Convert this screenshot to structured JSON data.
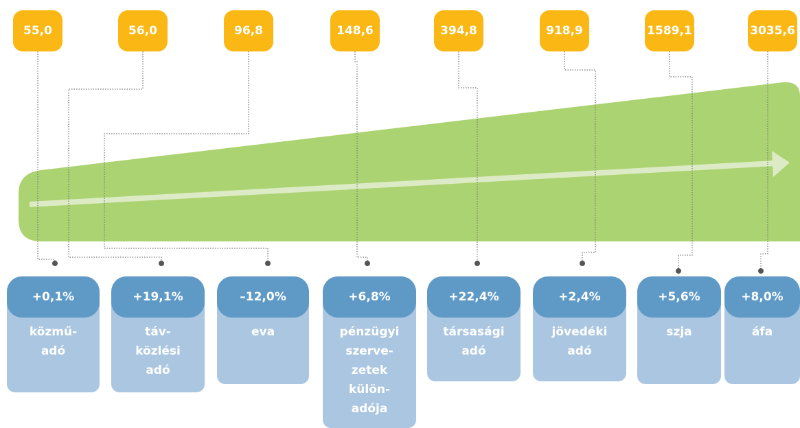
{
  "items": [
    {
      "amount": "55,0",
      "change": "+0,1%",
      "label": [
        "közmű-",
        "adó"
      ]
    },
    {
      "amount": "56,0",
      "change": "+19,1%",
      "label": [
        "táv-",
        "közlési",
        "adó"
      ]
    },
    {
      "amount": "96,8",
      "change": "–12,0%",
      "label": [
        "eva"
      ]
    },
    {
      "amount": "148,6",
      "change": "+6,8%",
      "label": [
        "pénzügyi",
        "szerve-",
        "zetek",
        "külön-",
        "adója"
      ]
    },
    {
      "amount": "394,8",
      "change": "+22,4%",
      "label": [
        "társasági",
        "adó"
      ]
    },
    {
      "amount": "918,9",
      "change": "+2,4%",
      "label": [
        "jövedéki",
        "adó"
      ]
    },
    {
      "amount": "1589,1",
      "change": "+5,6%",
      "label": [
        "szja"
      ]
    },
    {
      "amount": "3035,6",
      "change": "+8,0%",
      "label": [
        "áfa"
      ]
    }
  ]
}
